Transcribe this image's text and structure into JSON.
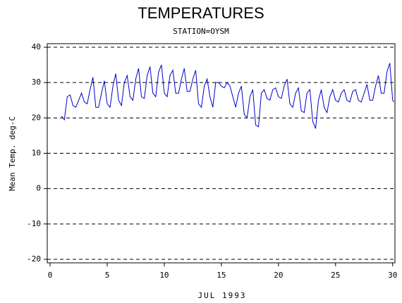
{
  "chart_data": {
    "type": "line",
    "title": "TEMPERATURES",
    "subtitle": "STATION=OYSM",
    "x_label": "JUL 1993",
    "y_label": "Mean Temp. deg-C",
    "xlim": [
      -0.25,
      30.2
    ],
    "ylim": [
      -21,
      41
    ],
    "xticks": [
      0,
      5,
      10,
      15,
      20,
      25,
      30
    ],
    "yticks": [
      -20,
      -10,
      0,
      10,
      20,
      30,
      40
    ],
    "grid": true,
    "x": [
      1.0,
      1.25,
      1.5,
      1.75,
      2.0,
      2.25,
      2.5,
      2.75,
      3.0,
      3.25,
      3.5,
      3.75,
      4.0,
      4.25,
      4.5,
      4.75,
      5.0,
      5.25,
      5.5,
      5.75,
      6.0,
      6.25,
      6.5,
      6.75,
      7.0,
      7.25,
      7.5,
      7.75,
      8.0,
      8.25,
      8.5,
      8.75,
      9.0,
      9.25,
      9.5,
      9.75,
      10.0,
      10.25,
      10.5,
      10.75,
      11.0,
      11.25,
      11.5,
      11.75,
      12.0,
      12.25,
      12.5,
      12.75,
      13.0,
      13.25,
      13.5,
      13.75,
      14.0,
      14.25,
      14.5,
      14.75,
      15.0,
      15.25,
      15.5,
      15.75,
      16.0,
      16.25,
      16.5,
      16.75,
      17.0,
      17.25,
      17.5,
      17.75,
      18.0,
      18.25,
      18.5,
      18.75,
      19.0,
      19.25,
      19.5,
      19.75,
      20.0,
      20.25,
      20.5,
      20.75,
      21.0,
      21.25,
      21.5,
      21.75,
      22.0,
      22.25,
      22.5,
      22.75,
      23.0,
      23.25,
      23.5,
      23.75,
      24.0,
      24.25,
      24.5,
      24.75,
      25.0,
      25.25,
      25.5,
      25.75,
      26.0,
      26.25,
      26.5,
      26.75,
      27.0,
      27.25,
      27.5,
      27.75,
      28.0,
      28.25,
      28.5,
      28.75,
      29.0,
      29.25,
      29.5,
      29.75,
      30.0,
      30.1
    ],
    "series": [
      {
        "name": "Mean Temp.",
        "color": "#0000cc",
        "values": [
          20.5,
          19.5,
          26,
          26.5,
          23.5,
          23,
          25,
          27,
          24.5,
          24,
          28,
          31.5,
          23,
          23,
          27,
          30.5,
          24,
          23,
          29,
          32.5,
          25,
          23.5,
          30,
          32,
          26,
          25,
          31,
          34,
          26,
          25.5,
          32,
          34.5,
          27,
          26,
          33,
          35,
          27,
          26,
          32,
          33.5,
          27,
          27,
          31,
          34,
          27.5,
          27.5,
          31,
          33.5,
          24,
          23,
          29,
          31,
          26,
          23,
          30,
          30,
          29,
          28.5,
          30,
          29,
          26,
          23,
          27,
          29,
          21,
          20,
          26,
          28,
          18,
          17.5,
          27,
          28,
          25.5,
          25,
          28,
          28.5,
          26,
          25.5,
          29,
          31,
          24,
          23,
          27,
          28.5,
          22,
          21.5,
          27,
          28,
          19,
          17,
          25,
          28,
          23,
          21.5,
          26,
          28,
          25,
          24.5,
          27,
          28,
          25,
          24.5,
          27.5,
          28,
          25,
          24.5,
          27,
          29.5,
          25,
          25,
          29,
          32,
          27,
          27,
          33,
          35.5,
          25,
          24.5
        ]
      }
    ]
  }
}
